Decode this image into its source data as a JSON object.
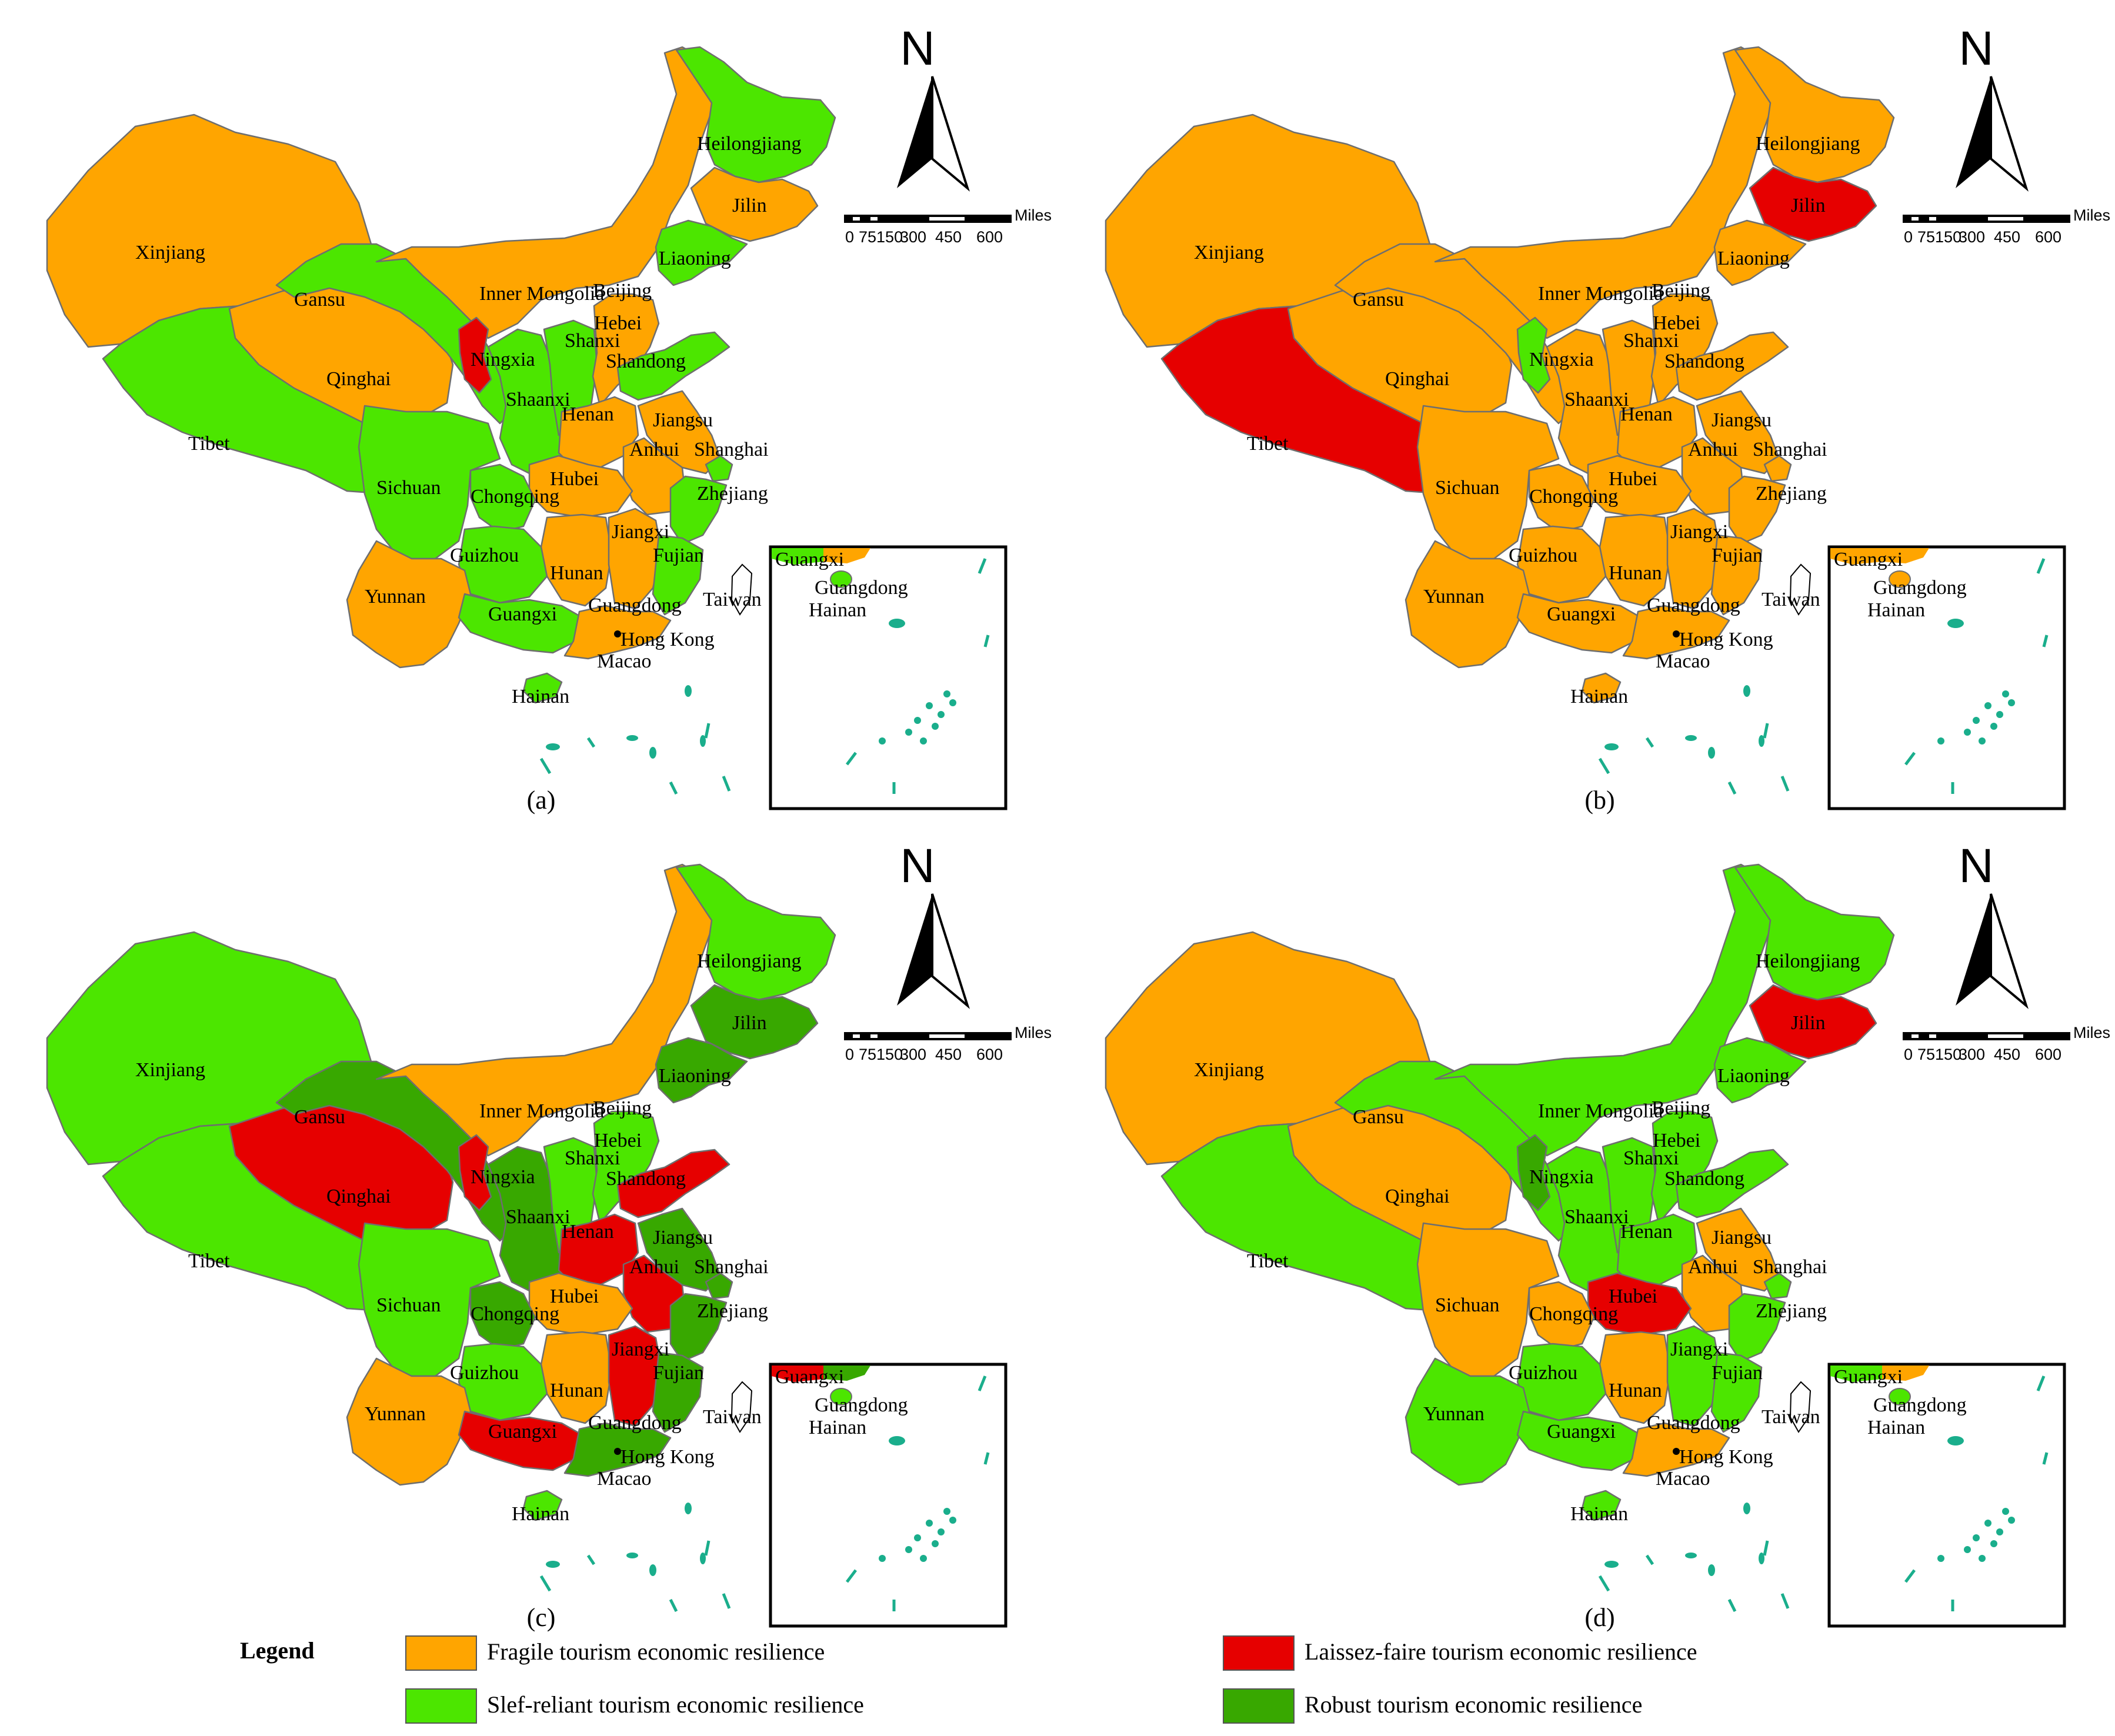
{
  "colors": {
    "fragile": "#FFA500",
    "self_reliant": "#4CE600",
    "laissez_faire": "#E60000",
    "robust": "#38A800",
    "border": "#6E6E6E",
    "sea_islands": "#1AAE8C"
  },
  "scale_bar": {
    "unit": "Miles",
    "ticks": [
      "0",
      "75150",
      "300",
      "450",
      "600"
    ]
  },
  "north_label": "N",
  "inset_labels": [
    "Guangxi",
    "Guangdong",
    "Hainan"
  ],
  "outside_labels": [
    "Taiwan",
    "Hong Kong",
    "Macao"
  ],
  "panels": [
    {
      "letter": "(a)",
      "provinces": {
        "Xinjiang": "fragile",
        "Tibet": "self_reliant",
        "Qinghai": "fragile",
        "Gansu": "self_reliant",
        "Inner Mongolia": "fragile",
        "Ningxia": "laissez_faire",
        "Shaanxi": "self_reliant",
        "Shanxi": "self_reliant",
        "Sichuan": "self_reliant",
        "Chongqing": "self_reliant",
        "Yunnan": "fragile",
        "Guizhou": "self_reliant",
        "Guangxi": "self_reliant",
        "Guangdong": "fragile",
        "Hainan": "self_reliant",
        "Hunan": "fragile",
        "Hubei": "fragile",
        "Henan": "fragile",
        "Hebei": "fragile",
        "Beijing": "laissez_faire",
        "Shandong": "self_reliant",
        "Jiangsu": "fragile",
        "Anhui": "fragile",
        "Shanghai": "self_reliant",
        "Zhejiang": "self_reliant",
        "Jiangxi": "fragile",
        "Fujian": "self_reliant",
        "Heilongjiang": "self_reliant",
        "Jilin": "fragile",
        "Liaoning": "self_reliant"
      }
    },
    {
      "letter": "(b)",
      "provinces": {
        "Xinjiang": "fragile",
        "Tibet": "laissez_faire",
        "Qinghai": "fragile",
        "Gansu": "fragile",
        "Inner Mongolia": "fragile",
        "Ningxia": "self_reliant",
        "Shaanxi": "fragile",
        "Shanxi": "fragile",
        "Sichuan": "fragile",
        "Chongqing": "fragile",
        "Yunnan": "fragile",
        "Guizhou": "fragile",
        "Guangxi": "fragile",
        "Guangdong": "fragile",
        "Hainan": "fragile",
        "Hunan": "fragile",
        "Hubei": "fragile",
        "Henan": "fragile",
        "Hebei": "fragile",
        "Beijing": "fragile",
        "Shandong": "fragile",
        "Jiangsu": "fragile",
        "Anhui": "fragile",
        "Shanghai": "fragile",
        "Zhejiang": "fragile",
        "Jiangxi": "fragile",
        "Fujian": "fragile",
        "Heilongjiang": "fragile",
        "Jilin": "laissez_faire",
        "Liaoning": "fragile"
      }
    },
    {
      "letter": "(c)",
      "provinces": {
        "Xinjiang": "self_reliant",
        "Tibet": "self_reliant",
        "Qinghai": "laissez_faire",
        "Gansu": "robust",
        "Inner Mongolia": "fragile",
        "Ningxia": "laissez_faire",
        "Shaanxi": "robust",
        "Shanxi": "self_reliant",
        "Sichuan": "self_reliant",
        "Chongqing": "robust",
        "Yunnan": "fragile",
        "Guizhou": "self_reliant",
        "Guangxi": "laissez_faire",
        "Guangdong": "robust",
        "Hainan": "self_reliant",
        "Hunan": "fragile",
        "Hubei": "fragile",
        "Henan": "laissez_faire",
        "Hebei": "self_reliant",
        "Beijing": "laissez_faire",
        "Shandong": "laissez_faire",
        "Jiangsu": "robust",
        "Anhui": "laissez_faire",
        "Shanghai": "robust",
        "Zhejiang": "robust",
        "Jiangxi": "laissez_faire",
        "Fujian": "robust",
        "Heilongjiang": "self_reliant",
        "Jilin": "robust",
        "Liaoning": "robust"
      }
    },
    {
      "letter": "(d)",
      "provinces": {
        "Xinjiang": "fragile",
        "Tibet": "self_reliant",
        "Qinghai": "fragile",
        "Gansu": "self_reliant",
        "Inner Mongolia": "self_reliant",
        "Ningxia": "robust",
        "Shaanxi": "self_reliant",
        "Shanxi": "self_reliant",
        "Sichuan": "fragile",
        "Chongqing": "fragile",
        "Yunnan": "self_reliant",
        "Guizhou": "self_reliant",
        "Guangxi": "self_reliant",
        "Guangdong": "fragile",
        "Hainan": "self_reliant",
        "Hunan": "fragile",
        "Hubei": "laissez_faire",
        "Henan": "self_reliant",
        "Hebei": "self_reliant",
        "Beijing": "fragile",
        "Shandong": "self_reliant",
        "Jiangsu": "fragile",
        "Anhui": "fragile",
        "Shanghai": "self_reliant",
        "Zhejiang": "self_reliant",
        "Jiangxi": "self_reliant",
        "Fujian": "self_reliant",
        "Heilongjiang": "self_reliant",
        "Jilin": "laissez_faire",
        "Liaoning": "self_reliant"
      }
    }
  ],
  "legend": {
    "title": "Legend",
    "items": [
      {
        "key": "fragile",
        "label": "Fragile tourism economic resilience"
      },
      {
        "key": "self_reliant",
        "label": "Slef-reliant tourism economic resilience"
      },
      {
        "key": "laissez_faire",
        "label": "Laissez-faire tourism economic resilience"
      },
      {
        "key": "robust",
        "label": "Robust tourism economic resilience"
      }
    ]
  }
}
